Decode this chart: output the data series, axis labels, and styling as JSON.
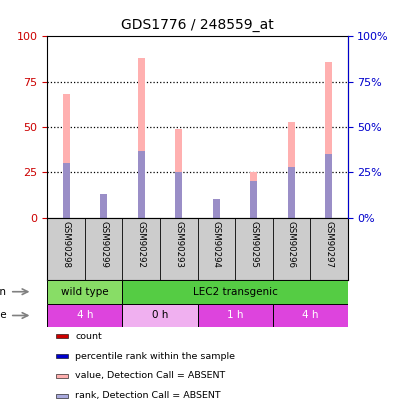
{
  "title": "GDS1776 / 248559_at",
  "samples": [
    "GSM90298",
    "GSM90299",
    "GSM90292",
    "GSM90293",
    "GSM90294",
    "GSM90295",
    "GSM90296",
    "GSM90297"
  ],
  "pink_bars": [
    68,
    13,
    88,
    49,
    10,
    25,
    53,
    86
  ],
  "blue_bars": [
    30,
    13,
    37,
    25,
    10,
    20,
    28,
    35
  ],
  "strain_groups": [
    {
      "label": "wild type",
      "span": [
        0,
        2
      ],
      "color": "#88dd66"
    },
    {
      "label": "LEC2 transgenic",
      "span": [
        2,
        8
      ],
      "color": "#55cc44"
    }
  ],
  "time_groups": [
    {
      "label": "4 h",
      "span": [
        0,
        2
      ],
      "color": "#dd44dd"
    },
    {
      "label": "0 h",
      "span": [
        2,
        4
      ],
      "color": "#f0b0f0"
    },
    {
      "label": "1 h",
      "span": [
        4,
        6
      ],
      "color": "#dd44dd"
    },
    {
      "label": "4 h",
      "span": [
        6,
        8
      ],
      "color": "#dd44dd"
    }
  ],
  "ylim": [
    0,
    100
  ],
  "yticks": [
    0,
    25,
    50,
    75,
    100
  ],
  "left_tick_color": "#cc0000",
  "right_tick_color": "#0000cc",
  "bar_width": 0.18,
  "pink_color": "#ffb0b0",
  "blue_color": "#8888cc",
  "legend_items": [
    {
      "color": "#cc0000",
      "label": "count"
    },
    {
      "color": "#0000cc",
      "label": "percentile rank within the sample"
    },
    {
      "color": "#ffb0b0",
      "label": "value, Detection Call = ABSENT"
    },
    {
      "color": "#aaaadd",
      "label": "rank, Detection Call = ABSENT"
    }
  ],
  "background_color": "#ffffff",
  "plot_bg": "#ffffff",
  "sample_area_color": "#cccccc"
}
